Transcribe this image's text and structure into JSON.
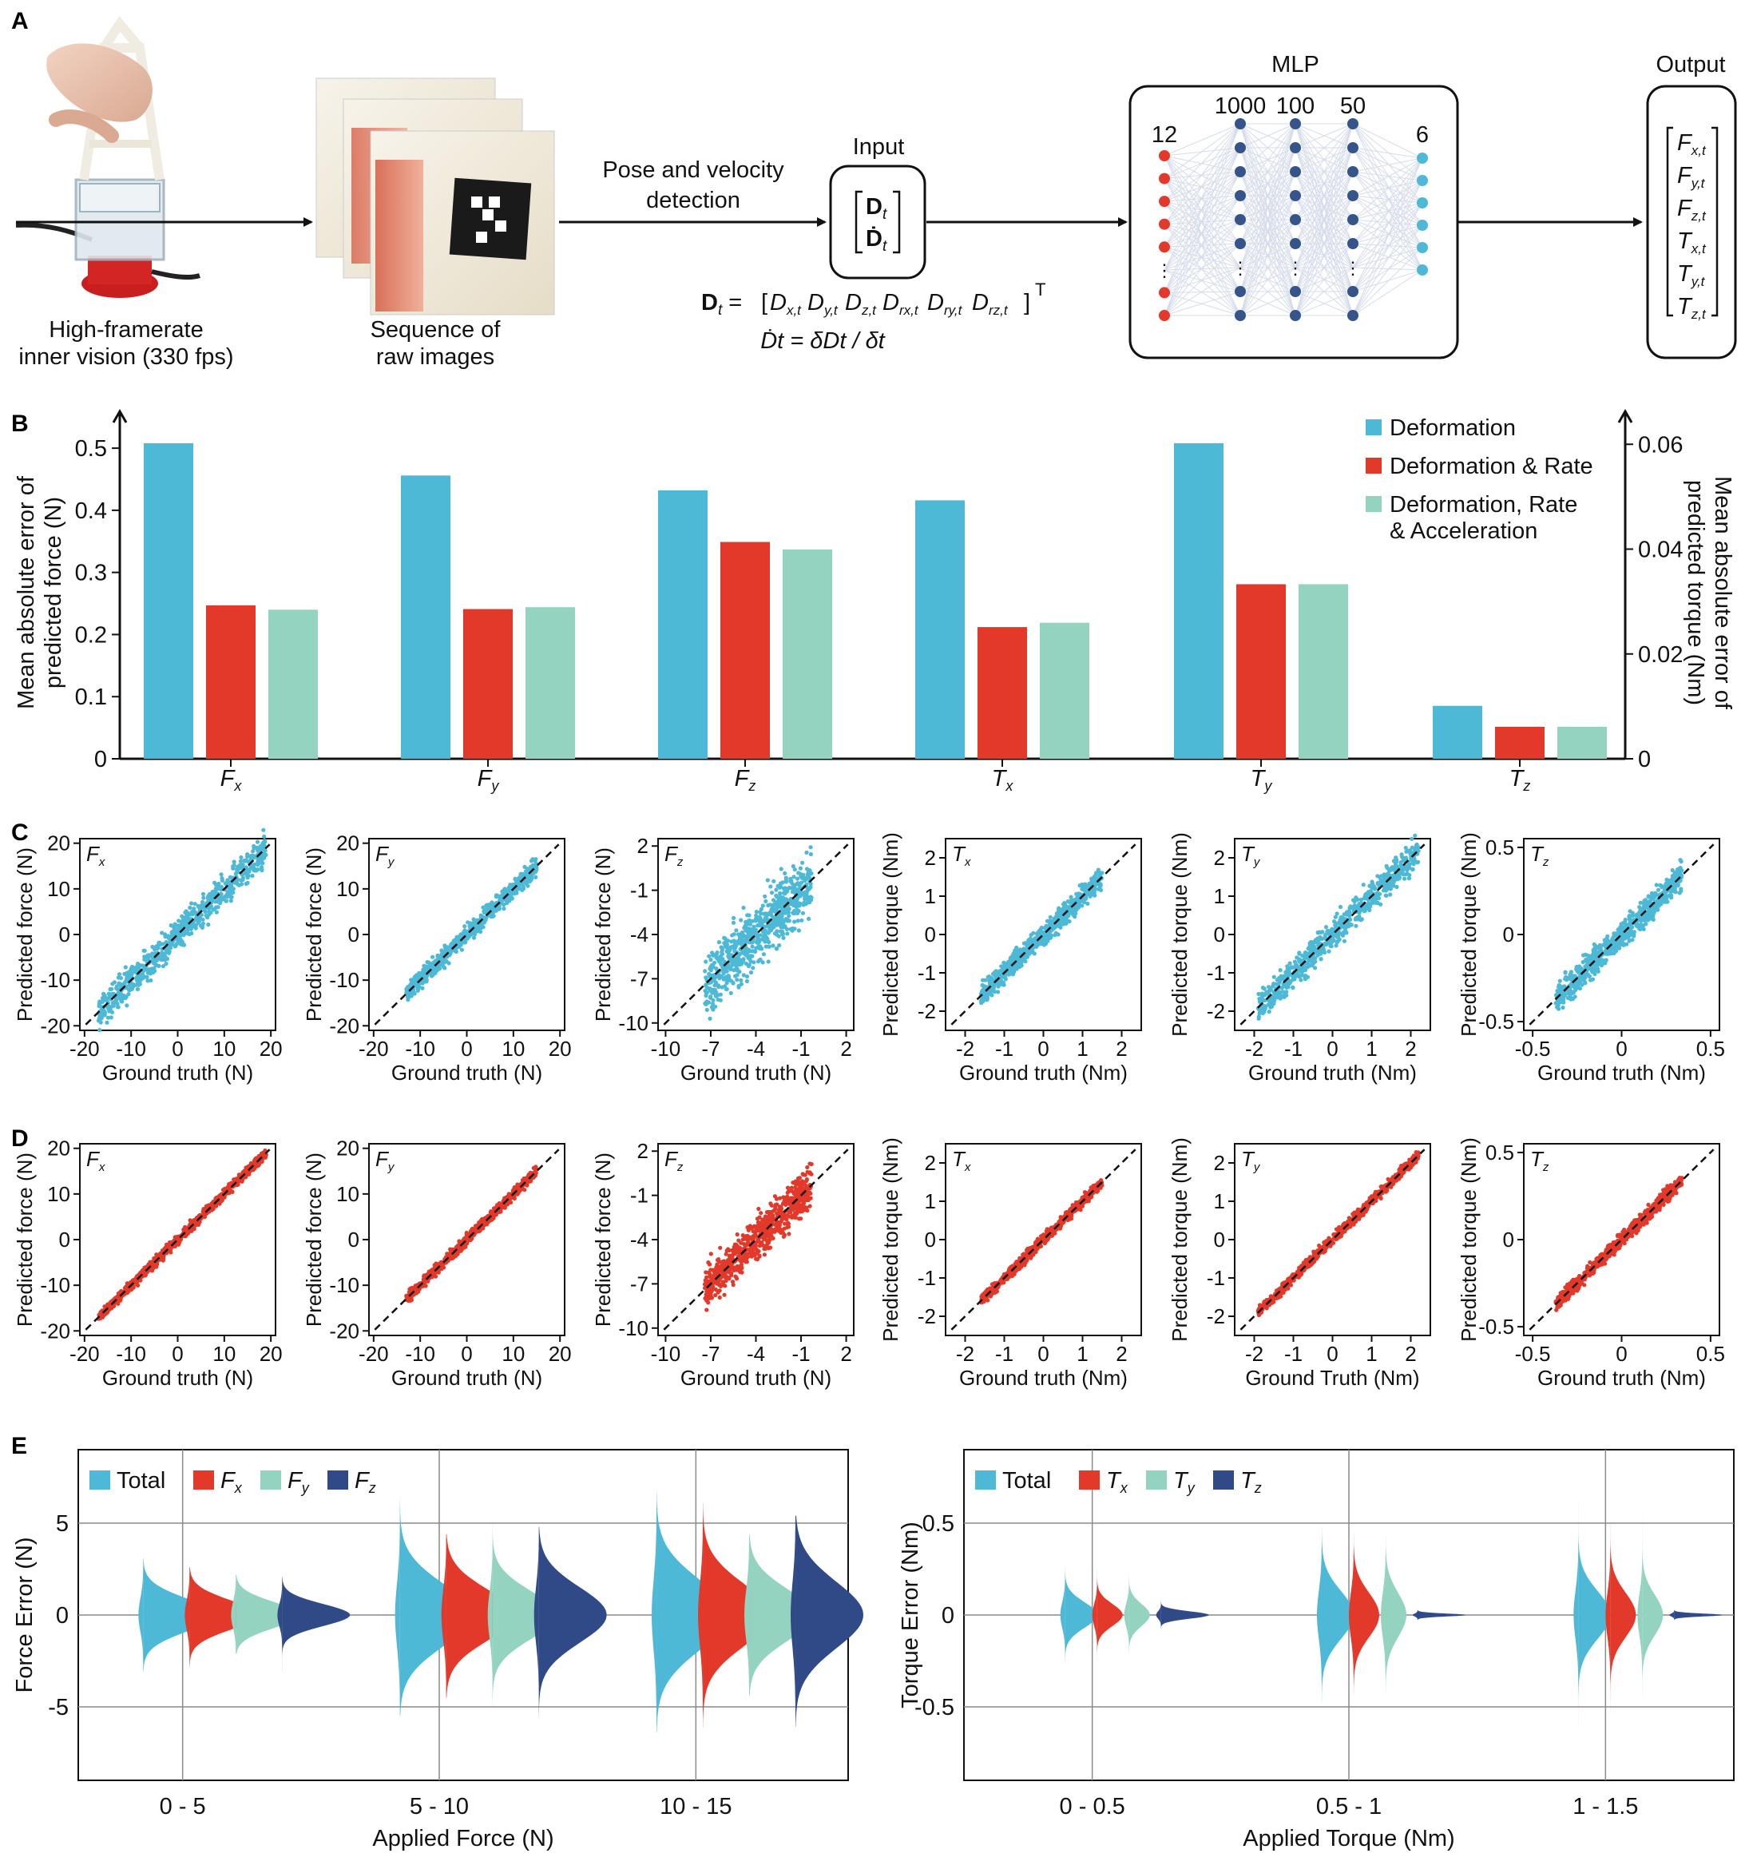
{
  "colors": {
    "deformation": "#4db9d6",
    "rate": "#e2392a",
    "acceleration": "#93d3bf",
    "fz_violin": "#2f4a86",
    "node_input": "#e2392a",
    "node_hidden": "#34548a",
    "node_output": "#4db9d6",
    "axis": "#111111",
    "grid": "#8a8a8a"
  },
  "panel_a": {
    "letter": "A",
    "camera_caption_1": "High-framerate",
    "camera_caption_2": "inner vision (330 fps)",
    "images_caption_1": "Sequence of",
    "images_caption_2": "raw images",
    "step_label_1": "Pose and velocity",
    "step_label_2": "detection",
    "input_title": "Input",
    "input_vec_1": "D",
    "input_vec_1_sub": "t",
    "input_vec_2": "Ḋ",
    "input_vec_2_sub": "t",
    "eq1_lhs": "D",
    "eq1_lhs_sub": "t",
    "eq1_rhs_parts": [
      {
        "sym": "D",
        "sub": "x,t"
      },
      {
        "sym": "D",
        "sub": "y,t"
      },
      {
        "sym": "D",
        "sub": "z,t"
      },
      {
        "sym": "D",
        "sub": "rx,t"
      },
      {
        "sym": "D",
        "sub": "ry,t"
      },
      {
        "sym": "D",
        "sub": "rz,t"
      }
    ],
    "eq1_transpose": "T",
    "eq2": "Ḋt = δDt / δt",
    "mlp_title": "MLP",
    "layer_sizes": [
      "12",
      "1000",
      "100",
      "50",
      "6"
    ],
    "output_title": "Output",
    "outputs": [
      {
        "sym": "F",
        "sub": "x,t"
      },
      {
        "sym": "F",
        "sub": "y,t"
      },
      {
        "sym": "F",
        "sub": "z,t"
      },
      {
        "sym": "T",
        "sub": "x,t"
      },
      {
        "sym": "T",
        "sub": "y,t"
      },
      {
        "sym": "T",
        "sub": "z,t"
      }
    ]
  },
  "chart_data": [
    {
      "id": "B",
      "type": "bar",
      "letter": "B",
      "categories": [
        {
          "sym": "F",
          "sub": "x"
        },
        {
          "sym": "F",
          "sub": "y"
        },
        {
          "sym": "F",
          "sub": "z"
        },
        {
          "sym": "T",
          "sub": "x"
        },
        {
          "sym": "T",
          "sub": "y"
        },
        {
          "sym": "T",
          "sub": "z"
        }
      ],
      "series": [
        {
          "name": "Deformation",
          "values": [
            0.508,
            0.456,
            0.432,
            0.416,
            0.508,
            0.0101
          ]
        },
        {
          "name": "Deformation & Rate",
          "values": [
            0.247,
            0.241,
            0.349,
            0.212,
            0.281,
            0.0061
          ]
        },
        {
          "name": "Deformation, Rate & Acceleration",
          "values": [
            0.24,
            0.244,
            0.337,
            0.219,
            0.281,
            0.0061
          ]
        }
      ],
      "legend_lines": [
        [
          "Deformation"
        ],
        [
          "Deformation & Rate"
        ],
        [
          "Deformation, Rate",
          "& Acceleration"
        ]
      ],
      "ylabel_left_1": "Mean absolute error of",
      "ylabel_left_2": "predicted force (N)",
      "ylabel_right_1": "Mean absolute error of",
      "ylabel_right_2": "predicted torque (Nm)",
      "ylim_left": [
        0,
        0.54
      ],
      "ylim_right": [
        0,
        0.064
      ],
      "yticks_left": [
        "0",
        "0.1",
        "0.2",
        "0.3",
        "0.4",
        "0.5"
      ],
      "yticks_right": [
        "0",
        "0.02",
        "0.04",
        "0.06"
      ],
      "legend_position": "top-right"
    },
    {
      "id": "C",
      "type": "scatter",
      "letter": "C",
      "description_color": "deformation",
      "subplots": [
        {
          "name": "F",
          "sub": "x",
          "lim": [
            -21,
            21
          ],
          "ticks": [
            -20,
            -10,
            0,
            10,
            20
          ],
          "xlabel": "Ground truth (N)",
          "ylabel": "Predicted force (N)",
          "range": [
            -17,
            19
          ],
          "spread": 0.09
        },
        {
          "name": "F",
          "sub": "y",
          "lim": [
            -21,
            21
          ],
          "ticks": [
            -20,
            -10,
            0,
            10,
            20
          ],
          "xlabel": "Ground truth (N)",
          "ylabel": "Predicted force (N)",
          "range": [
            -13,
            15
          ],
          "spread": 0.05
        },
        {
          "name": "F",
          "sub": "z",
          "lim": [
            -10.5,
            2.5
          ],
          "ticks": [
            -10,
            -7,
            -4,
            -1,
            2
          ],
          "xlabel": "Ground truth (N)",
          "ylabel": "Predicted force (N)",
          "range": [
            -7.4,
            -0.3
          ],
          "spread": 0.18
        },
        {
          "name": "T",
          "sub": "x",
          "lim": [
            -2.5,
            2.5
          ],
          "ticks": [
            -2,
            -1,
            0,
            1,
            2
          ],
          "xlabel": "Ground truth (Nm)",
          "ylabel": "Predicted torque (Nm)",
          "range": [
            -1.6,
            1.5
          ],
          "spread": 0.06
        },
        {
          "name": "T",
          "sub": "y",
          "lim": [
            -2.5,
            2.5
          ],
          "ticks": [
            -2,
            -1,
            0,
            1,
            2
          ],
          "xlabel": "Ground truth (Nm)",
          "ylabel": "Predicted torque (Nm)",
          "range": [
            -1.9,
            2.2
          ],
          "spread": 0.09
        },
        {
          "name": "T",
          "sub": "z",
          "lim": [
            -0.55,
            0.55
          ],
          "ticks": [
            -0.5,
            0,
            0.5
          ],
          "xlabel": "Ground truth (Nm)",
          "ylabel": "Predicted torque (Nm)",
          "range": [
            -0.37,
            0.34
          ],
          "spread": 0.08
        }
      ]
    },
    {
      "id": "D",
      "type": "scatter",
      "letter": "D",
      "description_color": "rate",
      "subplots": [
        {
          "name": "F",
          "sub": "x",
          "lim": [
            -21,
            21
          ],
          "ticks": [
            -20,
            -10,
            0,
            10,
            20
          ],
          "xlabel": "Ground truth (N)",
          "ylabel": "Predicted force (N)",
          "range": [
            -17,
            19
          ],
          "spread": 0.03
        },
        {
          "name": "F",
          "sub": "y",
          "lim": [
            -21,
            21
          ],
          "ticks": [
            -20,
            -10,
            0,
            10,
            20
          ],
          "xlabel": "Ground truth (N)",
          "ylabel": "Predicted force (N)",
          "range": [
            -13,
            15
          ],
          "spread": 0.03
        },
        {
          "name": "F",
          "sub": "z",
          "lim": [
            -10.5,
            2.5
          ],
          "ticks": [
            -10,
            -7,
            -4,
            -1,
            2
          ],
          "xlabel": "Ground truth (N)",
          "ylabel": "Predicted force (N)",
          "range": [
            -7.4,
            -0.3
          ],
          "spread": 0.12
        },
        {
          "name": "T",
          "sub": "x",
          "lim": [
            -2.5,
            2.5
          ],
          "ticks": [
            -2,
            -1,
            0,
            1,
            2
          ],
          "xlabel": "Ground truth (Nm)",
          "ylabel": "Predicted torque (Nm)",
          "range": [
            -1.6,
            1.5
          ],
          "spread": 0.03
        },
        {
          "name": "T",
          "sub": "y",
          "lim": [
            -2.5,
            2.5
          ],
          "ticks": [
            -2,
            -1,
            0,
            1,
            2
          ],
          "xlabel": "Ground Truth (Nm)",
          "ylabel": "Predicted torque (Nm)",
          "range": [
            -1.9,
            2.2
          ],
          "spread": 0.03
        },
        {
          "name": "T",
          "sub": "z",
          "lim": [
            -0.55,
            0.55
          ],
          "ticks": [
            -0.5,
            0,
            0.5
          ],
          "xlabel": "Ground truth (Nm)",
          "ylabel": "Predicted torque (Nm)",
          "range": [
            -0.37,
            0.34
          ],
          "spread": 0.04
        }
      ]
    },
    {
      "id": "E-force",
      "type": "violin",
      "letter": "E",
      "legend": [
        {
          "name": "Total"
        },
        {
          "name": "F",
          "sub": "x"
        },
        {
          "name": "F",
          "sub": "y"
        },
        {
          "name": "F",
          "sub": "z"
        }
      ],
      "categories": [
        "0 - 5",
        "5 - 10",
        "10 - 15"
      ],
      "xlabel": "Applied Force (N)",
      "ylabel": "Force Error (N)",
      "ylim": [
        -9,
        9
      ],
      "yticks": [
        "-5",
        "0",
        "5"
      ],
      "groups": [
        {
          "range": [
            [
              -3.1,
              3.1
            ],
            [
              -2.9,
              2.6
            ],
            [
              -2.1,
              2.2
            ],
            [
              -3.1,
              2.1
            ]
          ],
          "sd": [
            0.9,
            0.8,
            0.7,
            0.6
          ]
        },
        {
          "range": [
            [
              -5.5,
              6.4
            ],
            [
              -4.5,
              4.4
            ],
            [
              -5.5,
              5.6
            ],
            [
              -5.6,
              4.8
            ]
          ],
          "sd": [
            1.7,
            1.4,
            1.3,
            1.5
          ]
        },
        {
          "range": [
            [
              -6.4,
              6.7
            ],
            [
              -6.1,
              6.1
            ],
            [
              -4.4,
              4.4
            ],
            [
              -6.1,
              5.4
            ]
          ],
          "sd": [
            1.9,
            1.7,
            1.4,
            1.8
          ]
        }
      ]
    },
    {
      "id": "E-torque",
      "type": "violin",
      "legend": [
        {
          "name": "Total"
        },
        {
          "name": "T",
          "sub": "x"
        },
        {
          "name": "T",
          "sub": "y"
        },
        {
          "name": "T",
          "sub": "z"
        }
      ],
      "categories": [
        "0 - 0.5",
        "0.5 - 1",
        "1 - 1.5"
      ],
      "xlabel": "Applied Torque (Nm)",
      "ylabel": "Torque Error (Nm)",
      "ylim": [
        -0.9,
        0.9
      ],
      "yticks": [
        "-0.5",
        "0",
        "0.5"
      ],
      "groups": [
        {
          "range": [
            [
              -0.27,
              0.28
            ],
            [
              -0.24,
              0.25
            ],
            [
              -0.24,
              0.23
            ],
            [
              -0.08,
              0.08
            ]
          ],
          "sd": [
            0.07,
            0.06,
            0.06,
            0.02
          ]
        },
        {
          "range": [
            [
              -0.58,
              0.61
            ],
            [
              -0.55,
              0.54
            ],
            [
              -0.5,
              0.49
            ],
            [
              -0.03,
              0.03
            ]
          ],
          "sd": [
            0.13,
            0.12,
            0.12,
            0.008
          ]
        },
        {
          "range": [
            [
              -0.6,
              0.61
            ],
            [
              -0.52,
              0.5
            ],
            [
              -0.47,
              0.54
            ],
            [
              -0.03,
              0.03
            ]
          ],
          "sd": [
            0.13,
            0.12,
            0.11,
            0.008
          ]
        }
      ]
    }
  ]
}
